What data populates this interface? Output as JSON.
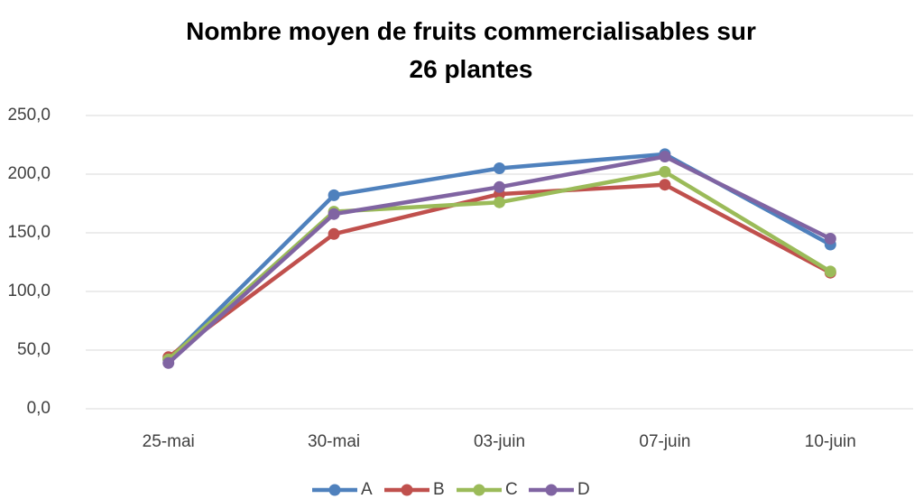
{
  "chart_data": {
    "type": "line",
    "title": "Nombre moyen de fruits commercialisables sur 26 plantes",
    "categories": [
      "25-mai",
      "30-mai",
      "03-juin",
      "07-juin",
      "10-juin"
    ],
    "series": [
      {
        "name": "A",
        "color": "#4f81bd",
        "values": [
          42,
          182,
          205,
          217,
          140
        ]
      },
      {
        "name": "B",
        "color": "#c0504d",
        "values": [
          44,
          149,
          183,
          191,
          116
        ]
      },
      {
        "name": "C",
        "color": "#9bbb59",
        "values": [
          42,
          168,
          176,
          202,
          117
        ]
      },
      {
        "name": "D",
        "color": "#8064a2",
        "values": [
          39,
          166,
          189,
          215,
          145
        ]
      }
    ],
    "ylim": [
      0,
      250
    ],
    "yticks": [
      {
        "value": 0,
        "label": "0,0"
      },
      {
        "value": 50,
        "label": "50,0"
      },
      {
        "value": 100,
        "label": "100,0"
      },
      {
        "value": 150,
        "label": "150,0"
      },
      {
        "value": 200,
        "label": "200,0"
      },
      {
        "value": 250,
        "label": "250,0"
      }
    ],
    "grid": true,
    "legend": "bottom"
  }
}
